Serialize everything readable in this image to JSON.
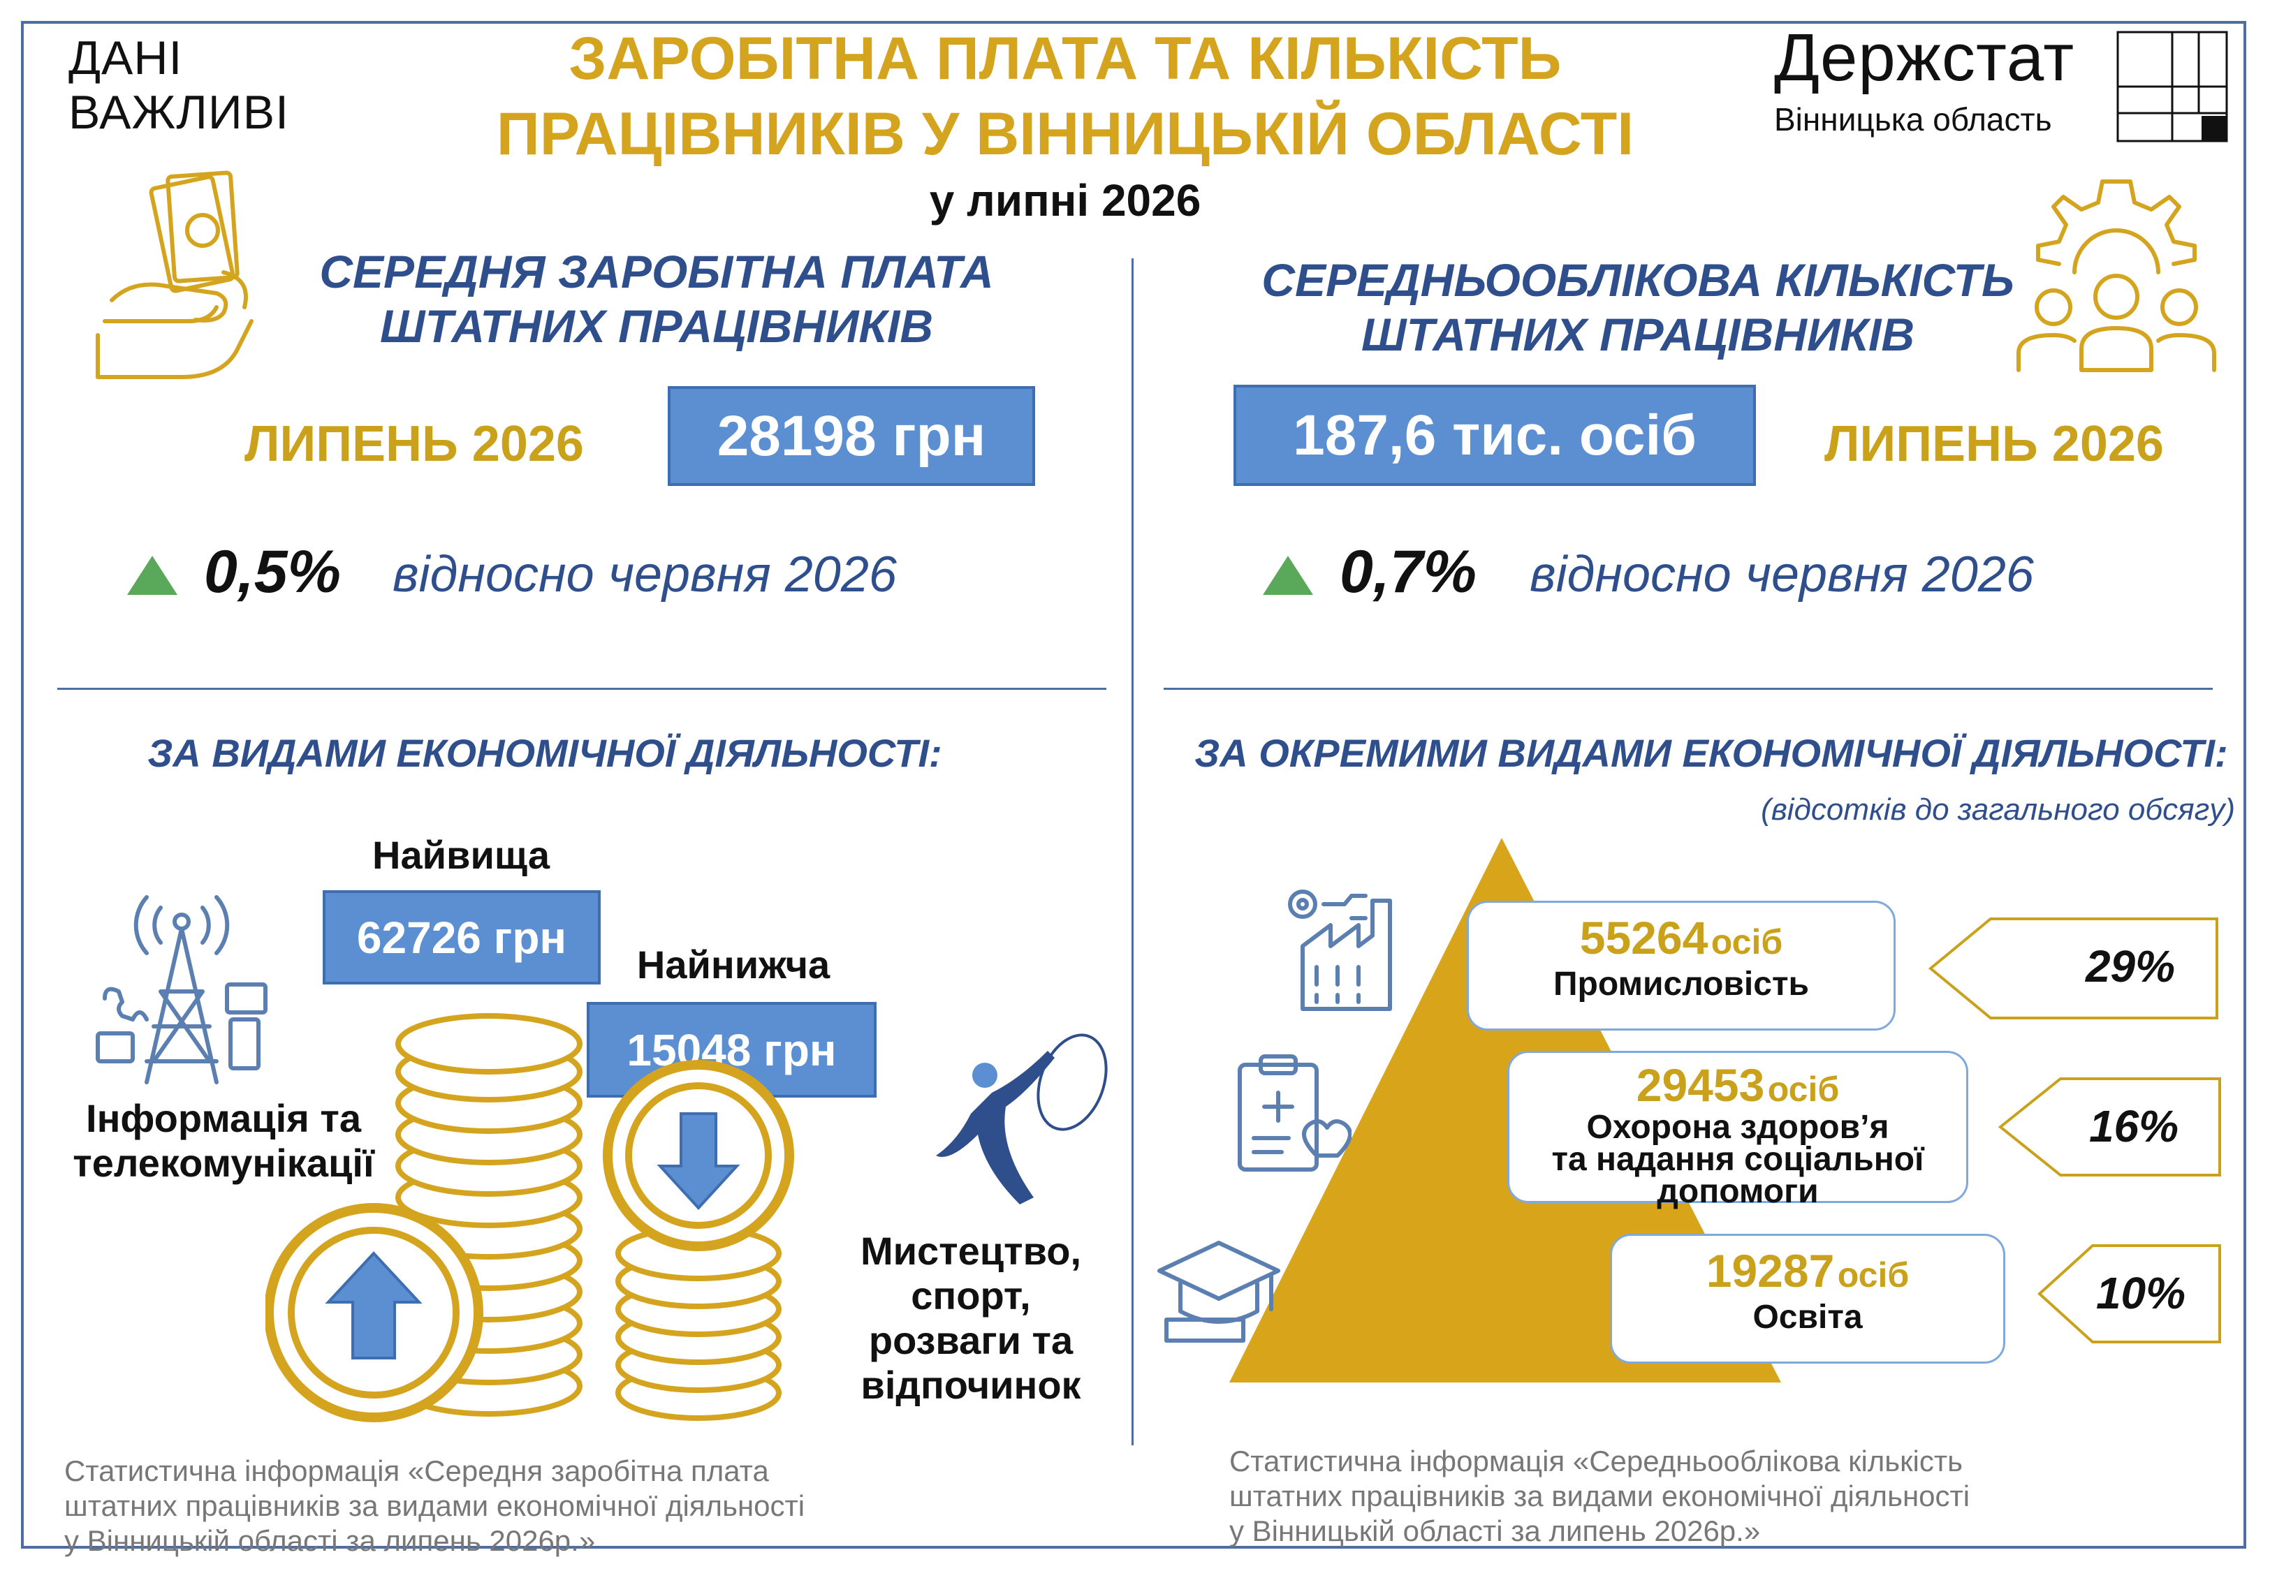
{
  "brand_tagline": [
    "ДАНІ",
    "ВАЖЛИВІ"
  ],
  "title_lines": [
    "ЗАРОБІТНА ПЛАТА ТА КІЛЬКІСТЬ",
    "ПРАЦІВНИКІВ У ВІННИЦЬКІЙ ОБЛАСТІ"
  ],
  "subtitle": "у липні 2026",
  "logo": {
    "name": "Держстат",
    "region": "Вінницька область"
  },
  "salary": {
    "title_lines": [
      "СЕРЕДНЯ ЗАРОБІТНА ПЛАТА",
      "ШТАТНИХ ПРАЦІВНИКІВ"
    ],
    "period": "ЛИПЕНЬ 2026",
    "value": "28198 грн",
    "change": "0,5%",
    "change_note": "відносно червня 2026"
  },
  "employees": {
    "title_lines": [
      "СЕРЕДНЬООБЛІКОВА КІЛЬКІСТЬ",
      "ШТАТНИХ ПРАЦІВНИКІВ"
    ],
    "period": "ЛИПЕНЬ 2026",
    "value": "187,6 тис. осіб",
    "change": "0,7%",
    "change_note": "відносно червня 2026"
  },
  "by_activity": {
    "title": "ЗА ВИДАМИ ЕКОНОМІЧНОЇ ДІЯЛЬНОСТІ:",
    "highest_label": "Найвища",
    "highest_value": "62726 грн",
    "highest_sector_lines": [
      "Інформація та",
      "телекомунікації"
    ],
    "lowest_label": "Найнижча",
    "lowest_value": "15048 грн",
    "lowest_sector_lines": [
      "Мистецтво,",
      "спорт,",
      "розваги та",
      "відпочинок"
    ],
    "source_lines": [
      "Статистична інформація «Середня заробітна плата",
      "штатних працівників за видами економічної діяльності",
      "у Вінницькій області за липень 2026р.»"
    ]
  },
  "by_selected": {
    "title": "ЗА ОКРЕМИМИ  ВИДАМИ ЕКОНОМІЧНОЇ ДІЯЛЬНОСТІ:",
    "subtitle": "(відсотків до загального обсягу)",
    "items": [
      {
        "value": "55264",
        "unit": "осіб",
        "label_lines": [
          "Промисловість"
        ],
        "share": "29%"
      },
      {
        "value": "29453",
        "unit": "осіб",
        "label_lines": [
          "Охорона здоров’я",
          "та надання соціальної",
          "допомоги"
        ],
        "share": "16%"
      },
      {
        "value": "19287",
        "unit": "осіб",
        "label_lines": [
          "Освіта"
        ],
        "share": "10%"
      }
    ],
    "source_lines": [
      "Статистична інформація «Середньооблікова кількість",
      "штатних працівників за видами економічної діяльності",
      "у Вінницькій області за липень 2026р.»"
    ]
  },
  "colors": {
    "gold": "#d5a41f",
    "blue": "#5b8fd1",
    "navy": "#2f4e8c",
    "green": "#5aa85a"
  }
}
